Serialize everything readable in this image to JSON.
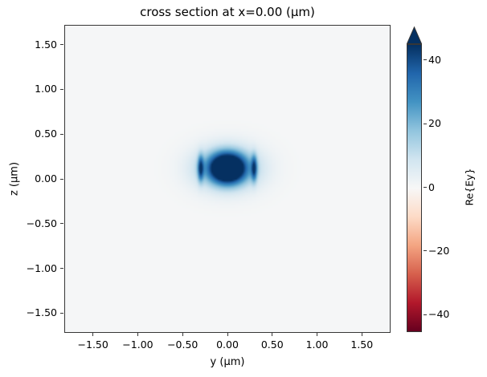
{
  "figure": {
    "title": "cross section at x=0.00 (μm)",
    "xlabel": "y (μm)",
    "ylabel": "z (μm)"
  },
  "chart_data": {
    "type": "heatmap",
    "title": "cross section at x=0.00 (μm)",
    "xlabel": "y (μm)",
    "ylabel": "z (μm)",
    "xlim": [
      -1.82,
      1.82
    ],
    "ylim": [
      -1.72,
      1.72
    ],
    "xtick_values": [
      -1.5,
      -1.0,
      -0.5,
      0.0,
      0.5,
      1.0,
      1.5
    ],
    "xtick_labels": [
      "−1.50",
      "−1.00",
      "−0.50",
      "0.00",
      "0.50",
      "1.00",
      "1.50"
    ],
    "ytick_values": [
      -1.5,
      -1.0,
      -0.5,
      0.0,
      0.5,
      1.0,
      1.5
    ],
    "ytick_labels": [
      "−1.50",
      "−1.00",
      "−0.50",
      "0.00",
      "0.50",
      "1.00",
      "1.50"
    ],
    "grid": false,
    "colorbar": {
      "label": "Re{Ey}",
      "vmin": -45,
      "vmax": 45,
      "tick_values": [
        40,
        20,
        0,
        -20,
        -40
      ],
      "tick_labels": [
        "40",
        "20",
        "0",
        "−20",
        "−40"
      ],
      "extend": "max"
    },
    "colormap": {
      "name": "RdBu",
      "stops": [
        [
          0.0,
          "#67001f"
        ],
        [
          0.1,
          "#b2182b"
        ],
        [
          0.2,
          "#d6604d"
        ],
        [
          0.3,
          "#f4a582"
        ],
        [
          0.4,
          "#fddbc7"
        ],
        [
          0.5,
          "#f7f7f7"
        ],
        [
          0.6,
          "#d1e5f0"
        ],
        [
          0.7,
          "#92c5de"
        ],
        [
          0.8,
          "#4393c3"
        ],
        [
          0.9,
          "#2166ac"
        ],
        [
          1.0,
          "#053061"
        ]
      ]
    },
    "field": {
      "description": "Re{Ey} mode field concentrated near (y=0, z=0.12); saturated dark-blue core with light-blue halo and narrow vertical lobes at the waveguide sidewalls y=±0.30; background ≈ 0.",
      "background": 0.5,
      "blobs": [
        {
          "name": "mode-core",
          "cy": 0.0,
          "cz": 0.12,
          "sy": 0.13,
          "sz": 0.11,
          "amp": 60
        },
        {
          "name": "mode-halo",
          "cy": 0.0,
          "cz": 0.12,
          "sy": 0.24,
          "sz": 0.16,
          "amp": 28
        },
        {
          "name": "left-sidewall",
          "cy": -0.3,
          "cz": 0.12,
          "sy": 0.022,
          "sz": 0.1,
          "amp": 32
        },
        {
          "name": "right-sidewall",
          "cy": 0.3,
          "cz": 0.12,
          "sy": 0.022,
          "sz": 0.1,
          "amp": 32
        }
      ]
    }
  }
}
